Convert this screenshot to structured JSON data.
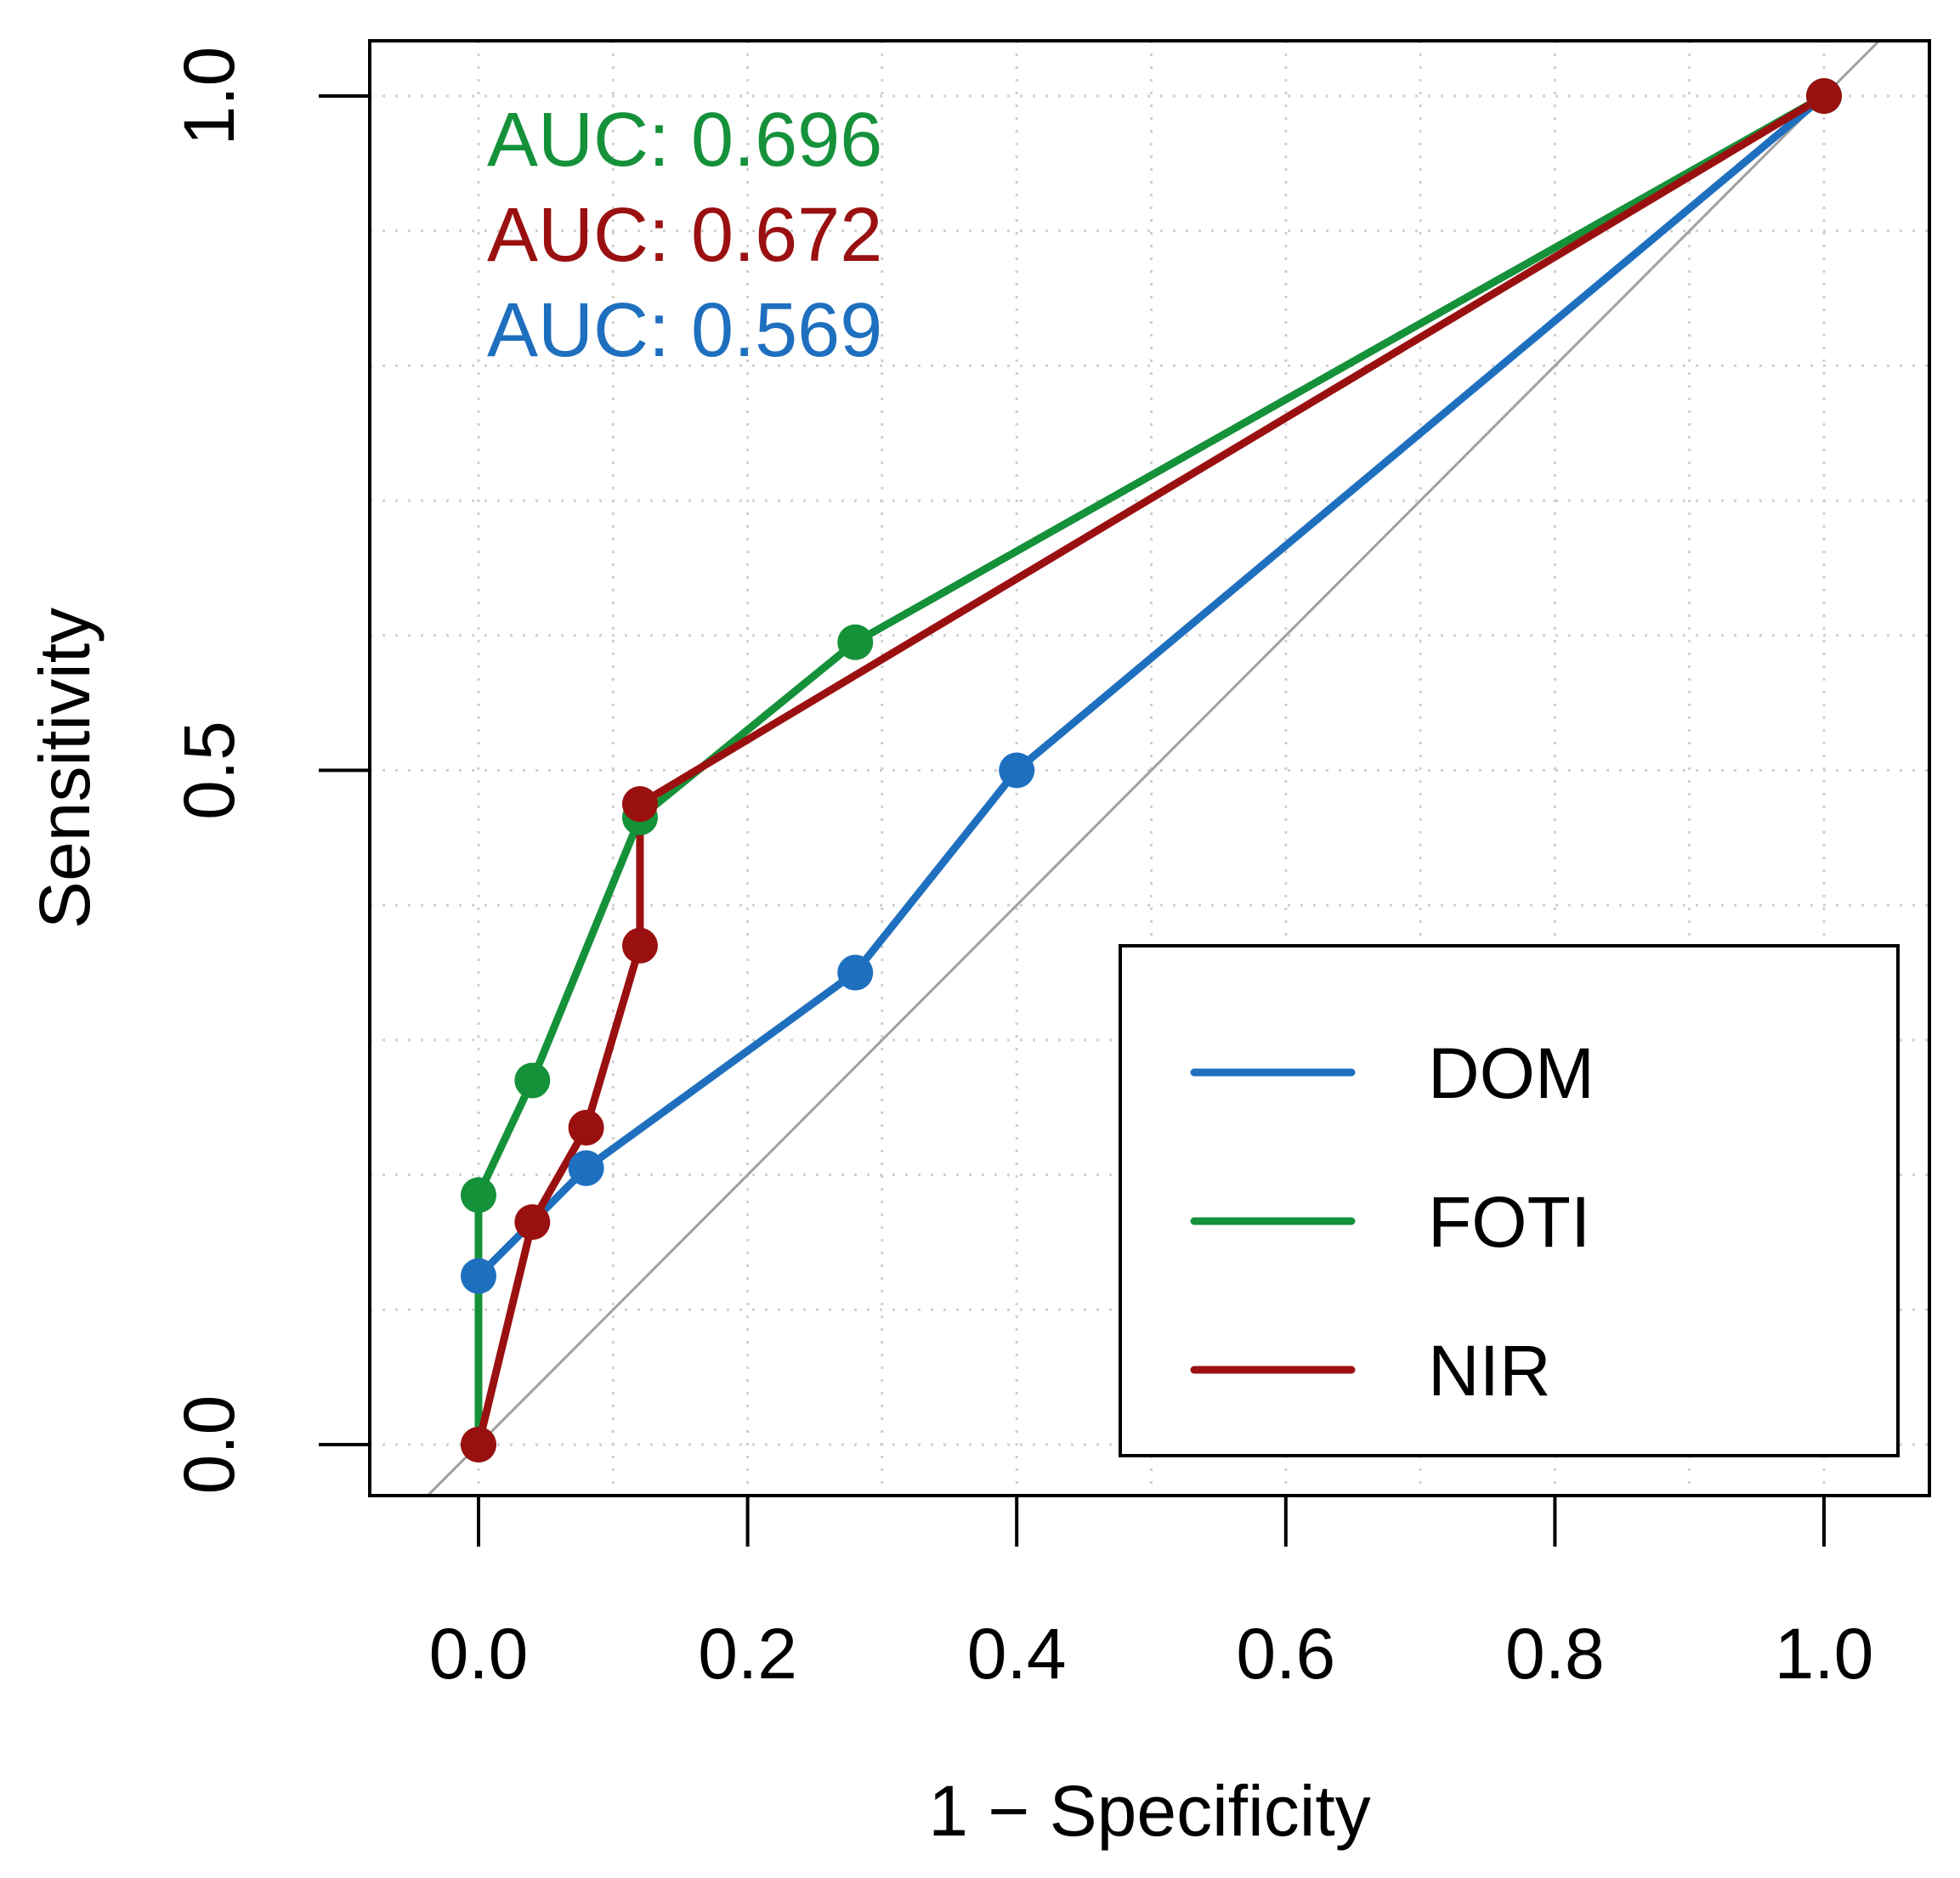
{
  "chart_data": {
    "type": "line",
    "title": "",
    "xlabel": "1 − Specificity",
    "ylabel": "Sensitivity",
    "xlim": [
      -0.04,
      1.07
    ],
    "ylim": [
      -0.04,
      1.04
    ],
    "xticks": [
      0.0,
      0.2,
      0.4,
      0.6,
      0.8,
      1.0
    ],
    "xtick_labels": [
      "0.0",
      "0.2",
      "0.4",
      "0.6",
      "0.8",
      "1.0"
    ],
    "yticks": [
      0.0,
      0.5,
      1.0
    ],
    "ytick_labels": [
      "0.0",
      "0.5",
      "1.0"
    ],
    "grid": "dotted",
    "reference_line": "diagonal",
    "legend_position": "bottom-right",
    "series": [
      {
        "name": "DOM",
        "color": "#1f6fbf",
        "auc_label": "AUC: 0.569",
        "x": [
          0.0,
          0.08,
          0.28,
          0.4,
          1.0
        ],
        "y": [
          0.125,
          0.205,
          0.35,
          0.5,
          1.0
        ]
      },
      {
        "name": "FOTI",
        "color": "#15913a",
        "auc_label": "AUC: 0.696",
        "x": [
          0.0,
          0.0,
          0.04,
          0.12,
          0.28,
          1.0
        ],
        "y": [
          0.0,
          0.185,
          0.27,
          0.465,
          0.595,
          1.0
        ]
      },
      {
        "name": "NIR",
        "color": "#9a1010",
        "auc_label": "AUC: 0.672",
        "x": [
          0.0,
          0.04,
          0.08,
          0.12,
          0.12,
          1.0
        ],
        "y": [
          0.0,
          0.165,
          0.235,
          0.37,
          0.475,
          1.0
        ]
      }
    ],
    "auc_order": [
      "FOTI",
      "NIR",
      "DOM"
    ],
    "legend_order": [
      "DOM",
      "FOTI",
      "NIR"
    ]
  }
}
